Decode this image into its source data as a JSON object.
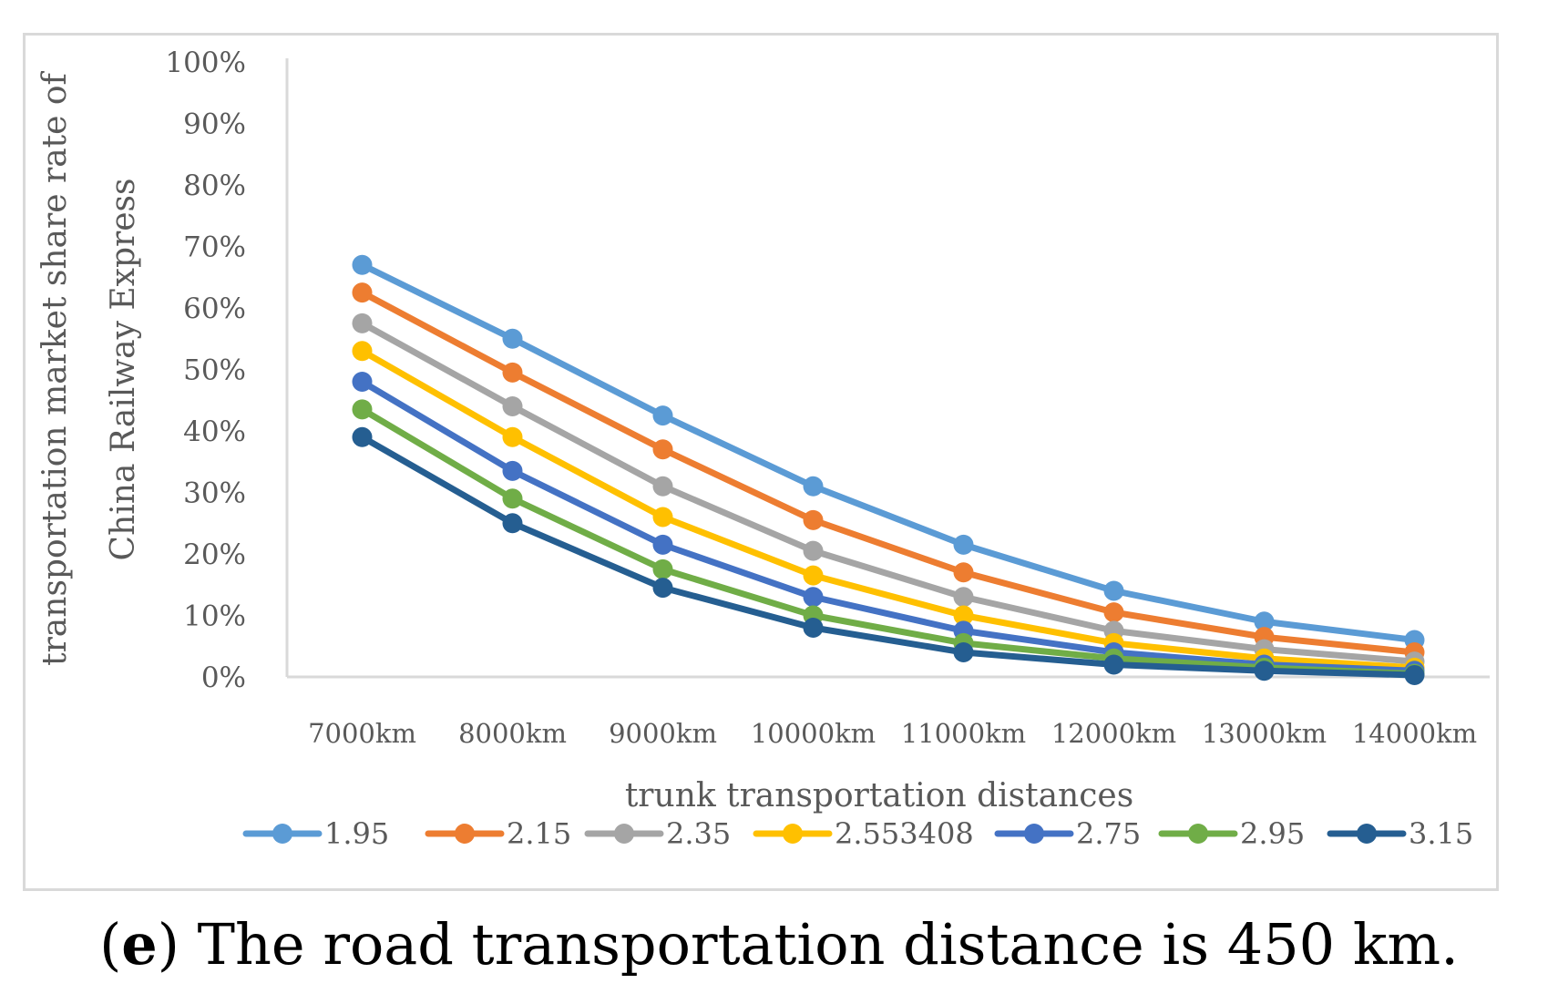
{
  "chart_data": {
    "type": "line",
    "title": "",
    "xlabel": "trunk transportation distances",
    "ylabel_line1": "transportation market share rate of",
    "ylabel_line2": "China Railway Express",
    "categories": [
      "7000km",
      "8000km",
      "9000km",
      "10000km",
      "11000km",
      "12000km",
      "13000km",
      "14000km"
    ],
    "y_ticks": [
      "0%",
      "10%",
      "20%",
      "30%",
      "40%",
      "50%",
      "60%",
      "70%",
      "80%",
      "90%",
      "100%"
    ],
    "ylim": [
      0,
      100
    ],
    "legend_position": "bottom",
    "grid": false,
    "series": [
      {
        "name": "1.95",
        "color": "#5b9bd5",
        "values": [
          67,
          55,
          42.5,
          31,
          21.5,
          14,
          9,
          6
        ]
      },
      {
        "name": "2.15",
        "color": "#ed7d31",
        "values": [
          62.5,
          49.5,
          37,
          25.5,
          17,
          10.5,
          6.5,
          4
        ]
      },
      {
        "name": "2.35",
        "color": "#a5a5a5",
        "values": [
          57.5,
          44,
          31,
          20.5,
          13,
          7.5,
          4.5,
          2.5
        ]
      },
      {
        "name": "2.553408",
        "color": "#ffc000",
        "values": [
          53,
          39,
          26,
          16.5,
          10,
          5.5,
          3,
          1.5
        ]
      },
      {
        "name": "2.75",
        "color": "#4472c4",
        "values": [
          48,
          33.5,
          21.5,
          13,
          7.5,
          4,
          2,
          1
        ]
      },
      {
        "name": "2.95",
        "color": "#70ad47",
        "values": [
          43.5,
          29,
          17.5,
          10,
          5.5,
          3,
          1.5,
          0.5
        ]
      },
      {
        "name": "3.15",
        "color": "#255e91",
        "values": [
          39,
          25,
          14.5,
          8,
          4,
          2,
          1,
          0.3
        ]
      }
    ]
  },
  "caption": {
    "open_paren": "(",
    "letter": "e",
    "text": ") The road transportation distance is 450 km."
  }
}
